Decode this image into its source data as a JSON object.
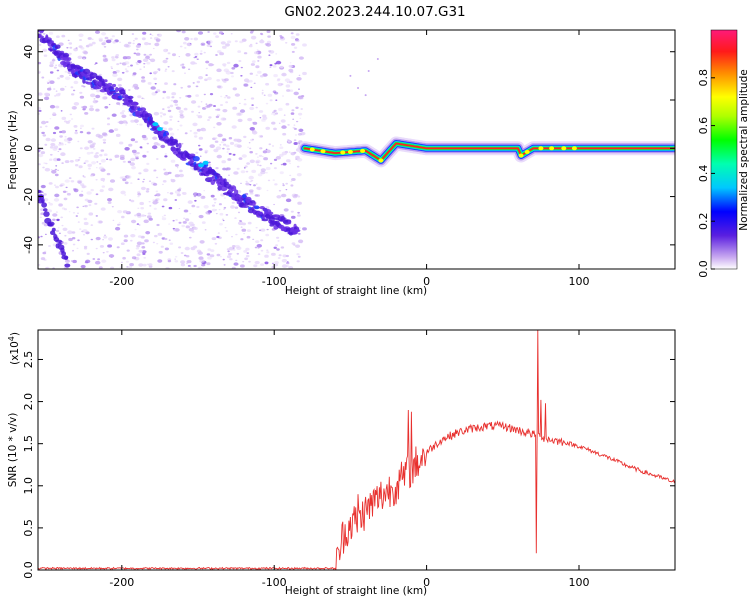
{
  "title": "GN02.2023.244.10.07.G31",
  "colors": {
    "snr_line": "#e8302e",
    "axis": "#000000",
    "background": "#ffffff"
  },
  "chart_data": [
    {
      "type": "heatmap",
      "xlabel": "Height of straight line (km)",
      "ylabel": "Frequency (Hz)",
      "xlim": [
        -255,
        163
      ],
      "ylim": [
        -50,
        49
      ],
      "x_ticks": [
        -200,
        -100,
        0,
        100
      ],
      "y_ticks": [
        -40,
        -20,
        0,
        20,
        40
      ],
      "colorbar": {
        "label": "Normalized spectral amplitude",
        "range": [
          0.0,
          1.0
        ],
        "ticks": [
          "0.0",
          "0.2",
          "0.4",
          "0.6",
          "0.8"
        ],
        "tick_values": [
          0.0,
          0.2,
          0.4,
          0.6,
          0.8
        ]
      },
      "noise_region_x": [
        -255,
        -80
      ],
      "descending_trend": [
        [
          -260,
          52
        ],
        [
          -230,
          32
        ],
        [
          -200,
          22
        ],
        [
          -180,
          10
        ],
        [
          -160,
          -2
        ],
        [
          -140,
          -12
        ],
        [
          -120,
          -22
        ],
        [
          -100,
          -30
        ],
        [
          -85,
          -34
        ]
      ],
      "lower_left_trend": [
        [
          -255,
          -18
        ],
        [
          -245,
          -35
        ],
        [
          -235,
          -48
        ]
      ],
      "signal_trace": [
        [
          -80,
          0
        ],
        [
          -60,
          -2
        ],
        [
          -40,
          -1
        ],
        [
          -30,
          -5
        ],
        [
          -20,
          2
        ],
        [
          -10,
          1
        ],
        [
          0,
          0
        ],
        [
          60,
          0
        ],
        [
          62,
          -3
        ],
        [
          70,
          0
        ],
        [
          100,
          0
        ],
        [
          163,
          0
        ]
      ]
    },
    {
      "type": "line",
      "xlabel": "Height of straight line (km)",
      "ylabel": "SNR (10 * v/v)",
      "y_exponent_label": "(x10",
      "y_exponent_power": "4",
      "y_exponent_close": ")",
      "xlim": [
        -255,
        163
      ],
      "ylim": [
        0,
        2.85
      ],
      "x_ticks": [
        -200,
        -100,
        0,
        100
      ],
      "y_ticks": [
        "0.0",
        "0.5",
        "1.0",
        "1.5",
        "2.0",
        "2.5"
      ],
      "y_tick_values": [
        0.0,
        0.5,
        1.0,
        1.5,
        2.0,
        2.5
      ],
      "series": [
        {
          "values_xy": [
            [
              -255,
              0.02
            ],
            [
              -60,
              0.02
            ],
            [
              -58,
              0.15
            ],
            [
              -55,
              0.4
            ],
            [
              -50,
              0.55
            ],
            [
              -45,
              0.6
            ],
            [
              -40,
              0.7
            ],
            [
              -35,
              0.8
            ],
            [
              -30,
              0.88
            ],
            [
              -25,
              0.95
            ],
            [
              -20,
              1.0
            ],
            [
              -15,
              1.1
            ],
            [
              -10,
              1.2
            ],
            [
              -5,
              1.3
            ],
            [
              0,
              1.4
            ],
            [
              10,
              1.55
            ],
            [
              20,
              1.63
            ],
            [
              30,
              1.68
            ],
            [
              40,
              1.71
            ],
            [
              50,
              1.71
            ],
            [
              60,
              1.66
            ],
            [
              70,
              1.61
            ],
            [
              80,
              1.55
            ],
            [
              90,
              1.52
            ],
            [
              100,
              1.47
            ],
            [
              110,
              1.4
            ],
            [
              120,
              1.33
            ],
            [
              130,
              1.25
            ],
            [
              140,
              1.18
            ],
            [
              150,
              1.12
            ],
            [
              163,
              1.04
            ]
          ],
          "spikes": [
            [
              -45,
              0.9
            ],
            [
              -12,
              1.9
            ],
            [
              -10,
              1.88
            ],
            [
              73,
              2.85
            ],
            [
              72,
              0.2
            ],
            [
              75,
              2.02
            ],
            [
              78,
              1.98
            ]
          ]
        }
      ]
    }
  ]
}
